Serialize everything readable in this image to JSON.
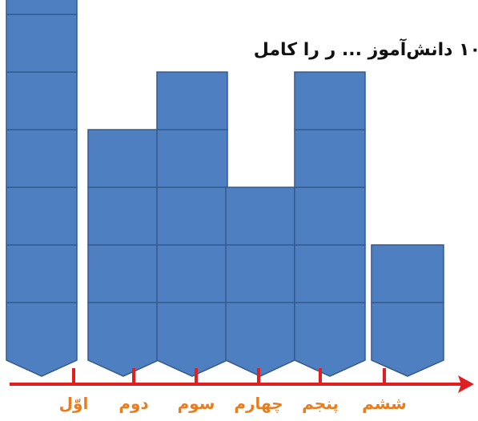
{
  "title": "۱۰ دانش‌آموز ... ر را کامل",
  "colors": {
    "fill": "#4e7fc0",
    "stroke": "#34598c",
    "axis": "#e02020",
    "label": "#e87d20"
  },
  "chart_data": {
    "type": "pictograph",
    "categories": [
      "اوّل",
      "دوم",
      "سوم",
      "چهارم",
      "پنجم",
      "ششم"
    ],
    "values": [
      7,
      4,
      5,
      3,
      5,
      2
    ],
    "axis": "arrow-right"
  }
}
